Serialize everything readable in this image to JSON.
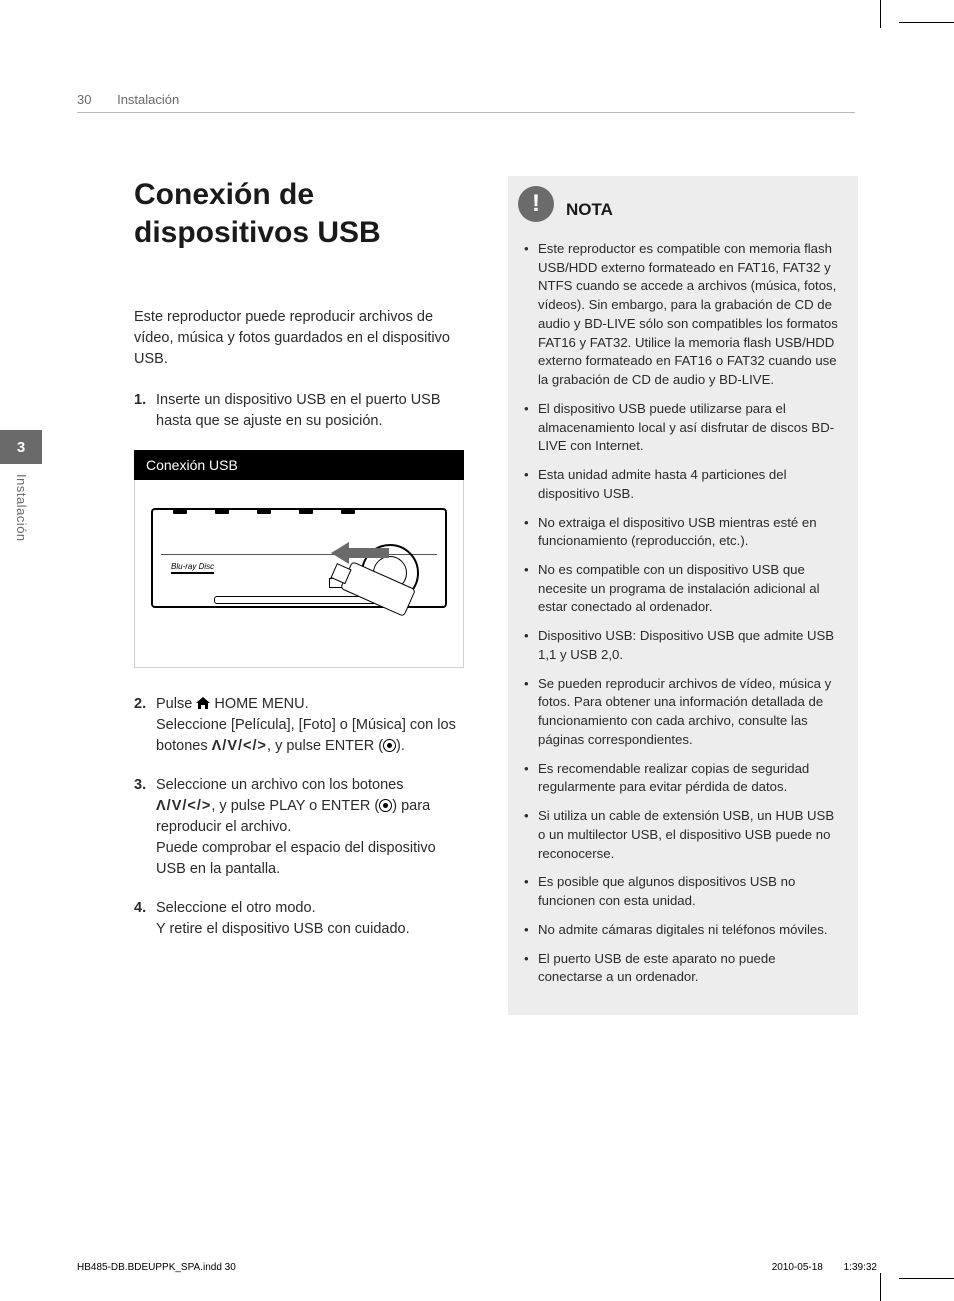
{
  "page": {
    "number": "30",
    "section": "Instalación"
  },
  "sideTab": {
    "number": "3",
    "label": "Instalación"
  },
  "title": "Conexión de dispositivos USB",
  "intro": "Este reproductor puede reproducir archivos de vídeo, música y fotos guardados en el dispositivo USB.",
  "steps": [
    {
      "n": "1.",
      "lines": [
        "Inserte un dispositivo USB en el puerto USB hasta que se ajuste en su posición."
      ]
    },
    {
      "n": "2.",
      "lines": [
        "Pulse {HOME} HOME MENU.",
        "Seleccione [Película], [Foto] o [Música] con los botones {ARROWS}, y pulse ENTER ({ENTER})."
      ]
    },
    {
      "n": "3.",
      "lines": [
        "Seleccione un archivo con los botones {ARROWS}, y pulse PLAY o ENTER ({ENTER}) para reproducir el archivo.",
        "Puede comprobar el espacio del dispositivo USB en la pantalla."
      ]
    },
    {
      "n": "4.",
      "lines": [
        "Seleccione el otro modo.",
        "Y retire el dispositivo USB con cuidado."
      ]
    }
  ],
  "figure": {
    "caption": "Conexión USB",
    "bdLabel": "Blu-ray Disc"
  },
  "note": {
    "badge": "!",
    "title": "NOTA",
    "items": [
      "Este reproductor es compatible con memoria flash USB/HDD externo formateado en FAT16, FAT32 y NTFS cuando se accede a archivos (música, fotos, vídeos). Sin embargo, para la grabación de CD de audio y BD-LIVE sólo son compatibles los formatos FAT16 y FAT32. Utilice la memoria flash USB/HDD externo formateado en FAT16 o FAT32 cuando use la grabación de CD de audio y BD-LIVE.",
      "El dispositivo USB puede utilizarse para el almacenamiento local y así disfrutar de discos BD-LIVE con Internet.",
      "Esta unidad admite hasta 4 particiones del dispositivo USB.",
      "No extraiga el dispositivo USB mientras esté en funcionamiento (reproducción, etc.).",
      "No es compatible con un dispositivo USB que necesite un programa de instalación adicional al estar conectado al ordenador.",
      "Dispositivo USB: Dispositivo USB que admite USB 1,1 y USB 2,0.",
      "Se pueden reproducir archivos de vídeo, música y fotos. Para obtener una información detallada de funcionamiento con cada archivo, consulte las páginas correspondientes.",
      "Es recomendable realizar copias de seguridad regularmente para evitar pérdida de datos.",
      "Si utiliza un cable de extensión USB, un HUB USB o un multilector USB, el dispositivo USB puede no reconocerse.",
      "Es posible que algunos dispositivos USB no funcionen con esta unidad.",
      "No admite cámaras digitales ni teléfonos móviles.",
      "El puerto USB de este aparato no puede conectarse a un ordenador."
    ]
  },
  "arrowsGlyph": "Λ/V/</>",
  "footer": {
    "file": "HB485-DB.BDEUPPK_SPA.indd   30",
    "date": "2010-05-18",
    "time": "1:39:32"
  },
  "colors": {
    "grayText": "#6a6a6a",
    "noteBg": "#ededed",
    "badgeBg": "#6b6b6b",
    "rule": "#b8b8b8"
  }
}
